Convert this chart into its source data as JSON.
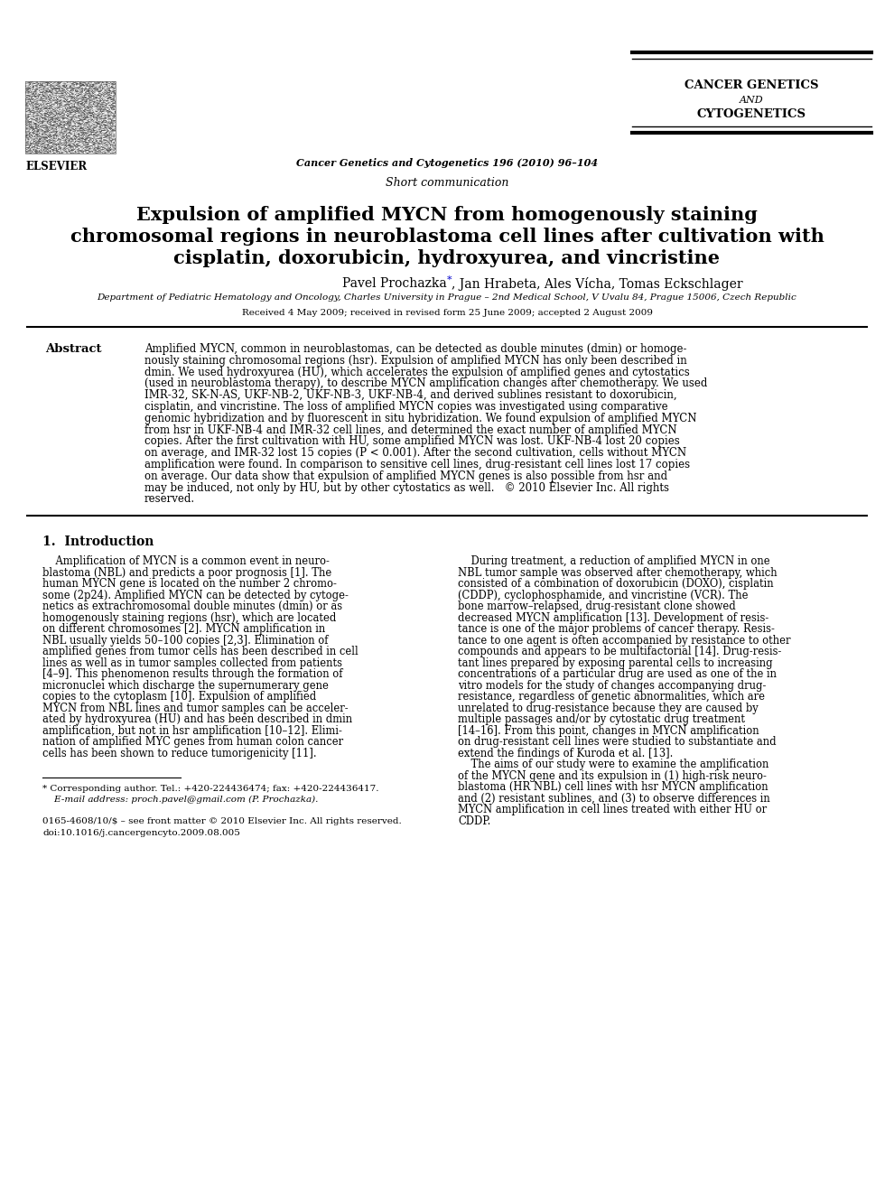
{
  "bg_color": "#ffffff",
  "journal_name": "Cancer Genetics and Cytogenetics 196 (2010) 96–104",
  "journal_header_line1": "CANCER GENETICS",
  "journal_header_line2": "AND",
  "journal_header_line3": "CYTOGENETICS",
  "section_label": "Short communication",
  "title_line1": "Expulsion of amplified MYCN from homogenously staining",
  "title_line2": "chromosomal regions in neuroblastoma cell lines after cultivation with",
  "title_line3": "cisplatin, doxorubicin, hydroxyurea, and vincristine",
  "author_pre": "Pavel Prochazka",
  "author_post": ", Jan Hrabeta, Ales Vícha, Tomas Eckschlager",
  "affiliation": "Department of Pediatric Hematology and Oncology, Charles University in Prague – 2nd Medical School, V Uvalu 84, Prague 15006, Czech Republic",
  "received": "Received 4 May 2009; received in revised form 25 June 2009; accepted 2 August 2009",
  "abstract_label": "Abstract",
  "abstract_lines": [
    "Amplified MYCN, common in neuroblastomas, can be detected as double minutes (dmin) or homoge-",
    "nously staining chromosomal regions (hsr). Expulsion of amplified MYCN has only been described in",
    "dmin. We used hydroxyurea (HU), which accelerates the expulsion of amplified genes and cytostatics",
    "(used in neuroblastoma therapy), to describe MYCN amplification changes after chemotherapy. We used",
    "IMR-32, SK-N-AS, UKF-NB-2, UKF-NB-3, UKF-NB-4, and derived sublines resistant to doxorubicin,",
    "cisplatin, and vincristine. The loss of amplified MYCN copies was investigated using comparative",
    "genomic hybridization and by fluorescent in situ hybridization. We found expulsion of amplified MYCN",
    "from hsr in UKF-NB-4 and IMR-32 cell lines, and determined the exact number of amplified MYCN",
    "copies. After the first cultivation with HU, some amplified MYCN was lost. UKF-NB-4 lost 20 copies",
    "on average, and IMR-32 lost 15 copies (P < 0.001). After the second cultivation, cells without MYCN",
    "amplification were found. In comparison to sensitive cell lines, drug-resistant cell lines lost 17 copies",
    "on average. Our data show that expulsion of amplified MYCN genes is also possible from hsr and",
    "may be induced, not only by HU, but by other cytostatics as well.   © 2010 Elsevier Inc. All rights",
    "reserved."
  ],
  "intro_heading": "1.  Introduction",
  "intro_col1_lines": [
    "    Amplification of MYCN is a common event in neuro-",
    "blastoma (NBL) and predicts a poor prognosis [1]. The",
    "human MYCN gene is located on the number 2 chromo-",
    "some (2p24). Amplified MYCN can be detected by cytoge-",
    "netics as extrachromosomal double minutes (dmin) or as",
    "homogenously staining regions (hsr), which are located",
    "on different chromosomes [2]. MYCN amplification in",
    "NBL usually yields 50–100 copies [2,3]. Elimination of",
    "amplified genes from tumor cells has been described in cell",
    "lines as well as in tumor samples collected from patients",
    "[4–9]. This phenomenon results through the formation of",
    "micronuclei which discharge the supernumerary gene",
    "copies to the cytoplasm [10]. Expulsion of amplified",
    "MYCN from NBL lines and tumor samples can be acceler-",
    "ated by hydroxyurea (HU) and has been described in dmin",
    "amplification, but not in hsr amplification [10–12]. Elimi-",
    "nation of amplified MYC genes from human colon cancer",
    "cells has been shown to reduce tumorigenicity [11]."
  ],
  "intro_col2_lines": [
    "    During treatment, a reduction of amplified MYCN in one",
    "NBL tumor sample was observed after chemotherapy, which",
    "consisted of a combination of doxorubicin (DOXO), cisplatin",
    "(CDDP), cyclophosphamide, and vincristine (VCR). The",
    "bone marrow–relapsed, drug-resistant clone showed",
    "decreased MYCN amplification [13]. Development of resis-",
    "tance is one of the major problems of cancer therapy. Resis-",
    "tance to one agent is often accompanied by resistance to other",
    "compounds and appears to be multifactorial [14]. Drug-resis-",
    "tant lines prepared by exposing parental cells to increasing",
    "concentrations of a particular drug are used as one of the in",
    "vitro models for the study of changes accompanying drug-",
    "resistance, regardless of genetic abnormalities, which are",
    "unrelated to drug-resistance because they are caused by",
    "multiple passages and/or by cytostatic drug treatment",
    "[14–16]. From this point, changes in MYCN amplification",
    "on drug-resistant cell lines were studied to substantiate and",
    "extend the findings of Kuroda et al. [13].",
    "    The aims of our study were to examine the amplification",
    "of the MYCN gene and its expulsion in (1) high-risk neuro-",
    "blastoma (HR NBL) cell lines with hsr MYCN amplification",
    "and (2) resistant sublines, and (3) to observe differences in",
    "MYCN amplification in cell lines treated with either HU or",
    "CDDP."
  ],
  "footnote1": "* Corresponding author. Tel.: +420-224436474; fax: +420-224436417.",
  "footnote2": "    E-mail address: proch.pavel@gmail.com (P. Prochazka).",
  "footnote3": "0165-4608/10/$ – see front matter © 2010 Elsevier Inc. All rights reserved.",
  "footnote4": "doi:10.1016/j.cancergencyto.2009.08.005",
  "link_color": "#0000cc"
}
